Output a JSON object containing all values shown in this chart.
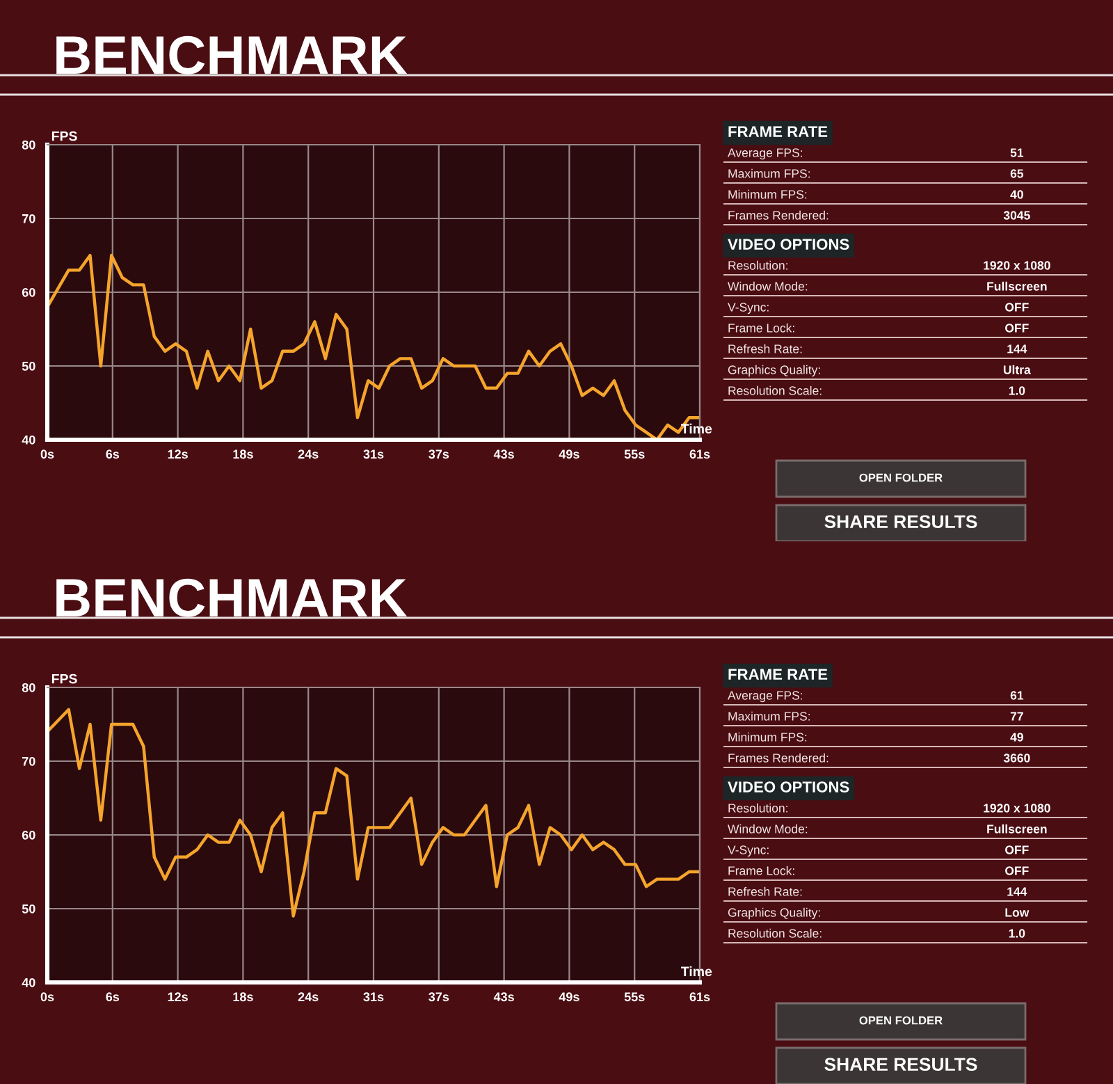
{
  "chart_data": [
    {
      "type": "line",
      "title": "BENCHMARK",
      "xlabel": "Time",
      "ylabel": "FPS",
      "color": "#f5a42c",
      "grid": true,
      "x": [
        0,
        2,
        3,
        4,
        5,
        6,
        7,
        8,
        9,
        10,
        11,
        12,
        13,
        14,
        15,
        16,
        17,
        18,
        19,
        20,
        21,
        22,
        23,
        24,
        25,
        26,
        27,
        28,
        29,
        30,
        31,
        32,
        33,
        34,
        35,
        36,
        37,
        38,
        39,
        40,
        41,
        42,
        43,
        44,
        45,
        46,
        47,
        48,
        49,
        50,
        51,
        52,
        53,
        54,
        55,
        56,
        57,
        58,
        59,
        60,
        61
      ],
      "values": [
        58,
        63,
        63,
        65,
        50,
        65,
        62,
        61,
        61,
        54,
        52,
        53,
        52,
        47,
        52,
        48,
        50,
        48,
        55,
        47,
        48,
        52,
        52,
        53,
        56,
        51,
        57,
        55,
        43,
        48,
        47,
        50,
        51,
        51,
        47,
        48,
        51,
        50,
        50,
        50,
        47,
        47,
        49,
        49,
        52,
        50,
        52,
        53,
        50,
        46,
        47,
        46,
        48,
        44,
        42,
        41,
        40,
        42,
        41,
        43,
        43
      ],
      "xlim": [
        0,
        61
      ],
      "ylim": [
        40,
        80
      ],
      "xticks": [
        {
          "value": 0,
          "label": "0s"
        },
        {
          "value": 6.1,
          "label": "6s"
        },
        {
          "value": 12.2,
          "label": "12s"
        },
        {
          "value": 18.3,
          "label": "18s"
        },
        {
          "value": 24.4,
          "label": "24s"
        },
        {
          "value": 30.5,
          "label": "31s"
        },
        {
          "value": 36.6,
          "label": "37s"
        },
        {
          "value": 42.7,
          "label": "43s"
        },
        {
          "value": 48.8,
          "label": "49s"
        },
        {
          "value": 54.9,
          "label": "55s"
        },
        {
          "value": 61,
          "label": "61s"
        }
      ],
      "yticks": [
        40,
        50,
        60,
        70,
        80
      ]
    },
    {
      "type": "other",
      "title": "FRAME RATE",
      "annotations": [
        "Average FPS:",
        "51",
        "Maximum FPS:",
        "65",
        "Minimum FPS:",
        "40",
        "Frames Rendered:",
        "3045"
      ]
    },
    {
      "type": "other",
      "title": "VIDEO OPTIONS",
      "annotations": [
        "Resolution:",
        "1920 x 1080",
        "Window Mode:",
        "Fullscreen",
        "V-Sync:",
        "OFF",
        "Frame Lock:",
        "OFF",
        "Refresh Rate:",
        "144",
        "Graphics Quality:",
        "Ultra",
        "Resolution Scale:",
        "1.0"
      ]
    },
    {
      "type": "other",
      "annotations": [
        "OPEN FOLDER",
        "SHARE RESULTS"
      ]
    },
    {
      "type": "line",
      "title": "BENCHMARK",
      "xlabel": "Time",
      "ylabel": "FPS",
      "color": "#f5a42c",
      "grid": true,
      "x": [
        0,
        2,
        3,
        4,
        5,
        6,
        7,
        8,
        9,
        10,
        11,
        12,
        13,
        14,
        15,
        16,
        17,
        18,
        19,
        20,
        21,
        22,
        23,
        24,
        25,
        26,
        27,
        28,
        29,
        30,
        31,
        32,
        33,
        34,
        35,
        36,
        37,
        38,
        39,
        40,
        41,
        42,
        43,
        44,
        45,
        46,
        47,
        48,
        49,
        50,
        51,
        52,
        53,
        54,
        55,
        56,
        57,
        58,
        59,
        60,
        61
      ],
      "values": [
        74,
        77,
        69,
        75,
        62,
        75,
        75,
        75,
        72,
        57,
        54,
        57,
        57,
        58,
        60,
        59,
        59,
        62,
        60,
        55,
        61,
        63,
        49,
        55,
        63,
        63,
        69,
        68,
        54,
        61,
        61,
        61,
        63,
        65,
        56,
        59,
        61,
        60,
        60,
        62,
        64,
        53,
        60,
        61,
        64,
        56,
        61,
        60,
        58,
        60,
        58,
        59,
        58,
        56,
        56,
        53,
        54,
        54,
        54,
        55,
        55
      ],
      "xlim": [
        0,
        61
      ],
      "ylim": [
        40,
        80
      ],
      "xticks": [
        {
          "value": 0,
          "label": "0s"
        },
        {
          "value": 6.1,
          "label": "6s"
        },
        {
          "value": 12.2,
          "label": "12s"
        },
        {
          "value": 18.3,
          "label": "18s"
        },
        {
          "value": 24.4,
          "label": "24s"
        },
        {
          "value": 30.5,
          "label": "31s"
        },
        {
          "value": 36.6,
          "label": "37s"
        },
        {
          "value": 42.7,
          "label": "43s"
        },
        {
          "value": 48.8,
          "label": "49s"
        },
        {
          "value": 54.9,
          "label": "55s"
        },
        {
          "value": 61,
          "label": "61s"
        }
      ],
      "yticks": [
        40,
        50,
        60,
        70,
        80
      ]
    },
    {
      "type": "other",
      "title": "FRAME RATE",
      "annotations": [
        "Average FPS:",
        "61",
        "Maximum FPS:",
        "77",
        "Minimum FPS:",
        "49",
        "Frames Rendered:",
        "3660"
      ]
    },
    {
      "type": "other",
      "title": "VIDEO OPTIONS",
      "annotations": [
        "Resolution:",
        "1920 x 1080",
        "Window Mode:",
        "Fullscreen",
        "V-Sync:",
        "OFF",
        "Frame Lock:",
        "OFF",
        "Refresh Rate:",
        "144",
        "Graphics Quality:",
        "Low",
        "Resolution Scale:",
        "1.0"
      ]
    },
    {
      "type": "other",
      "annotations": [
        "OPEN FOLDER",
        "SHARE RESULTS"
      ]
    }
  ]
}
